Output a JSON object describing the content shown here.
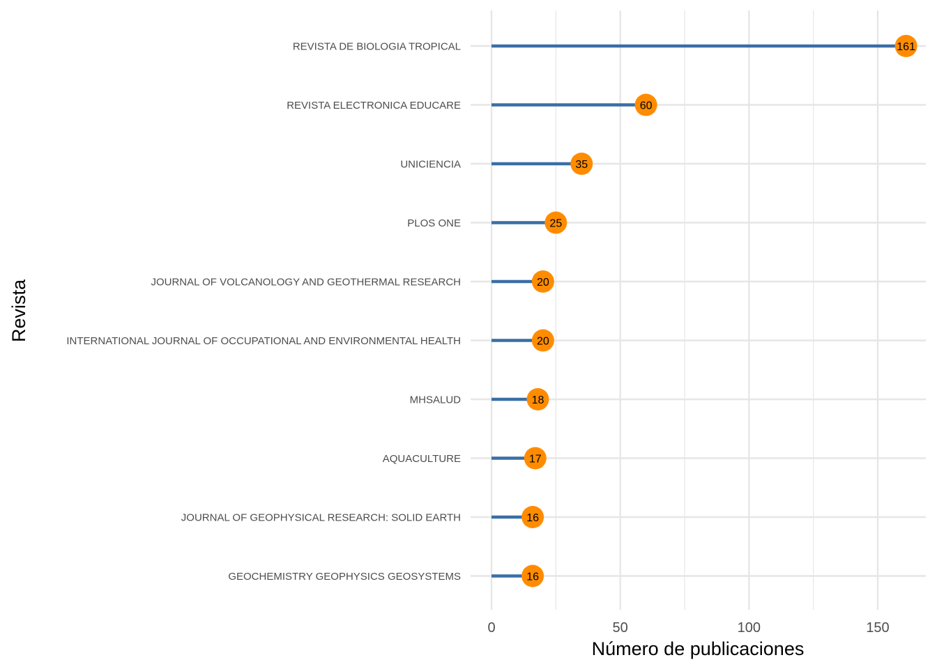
{
  "chart_data": {
    "type": "lollipop",
    "orientation": "horizontal",
    "xlabel": "Número de publicaciones",
    "ylabel": "Revista",
    "xlim": [
      0,
      168
    ],
    "xticks": [
      0,
      50,
      100,
      150
    ],
    "grid": true,
    "colors": {
      "stem": "#3a6ea5",
      "point": "#ff8c00",
      "grid": "#e6e6e6"
    },
    "categories": [
      "REVISTA DE BIOLOGIA TROPICAL",
      "REVISTA ELECTRONICA EDUCARE",
      "UNICIENCIA",
      "PLOS ONE",
      "JOURNAL OF VOLCANOLOGY AND GEOTHERMAL RESEARCH",
      "INTERNATIONAL JOURNAL OF OCCUPATIONAL AND ENVIRONMENTAL HEALTH",
      "MHSALUD",
      "AQUACULTURE",
      "JOURNAL OF GEOPHYSICAL RESEARCH: SOLID EARTH",
      "GEOCHEMISTRY GEOPHYSICS GEOSYSTEMS"
    ],
    "values": [
      161,
      60,
      35,
      25,
      20,
      20,
      18,
      17,
      16,
      16
    ]
  }
}
